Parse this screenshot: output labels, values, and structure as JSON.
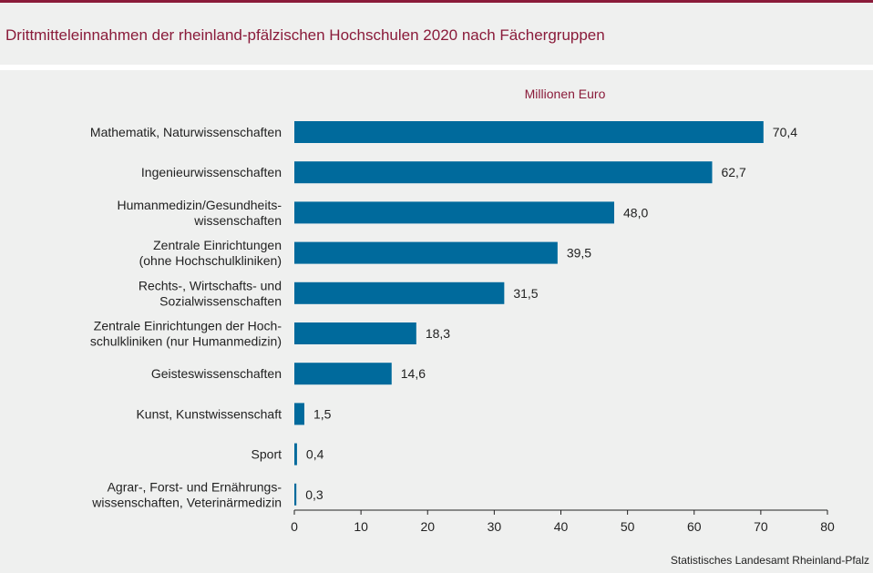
{
  "chart_data": {
    "type": "bar",
    "orientation": "horizontal",
    "title": "Drittmitteleinnahmen der rheinland-pfälzischen Hochschulen 2020 nach Fächergruppen",
    "unit": "Millionen  Euro",
    "categories": [
      [
        "Mathematik, Naturwissenschaften"
      ],
      [
        "Ingenieurwissenschaften"
      ],
      [
        "Humanmedizin/Gesundheits-",
        "wissenschaften"
      ],
      [
        "Zentrale Einrichtungen",
        "(ohne Hochschulkliniken)"
      ],
      [
        "Rechts-,  Wirtschafts- und",
        "Sozialwissenschaften"
      ],
      [
        "Zentrale Einrichtungen der Hoch-",
        "schulkliniken  (nur Humanmedizin)"
      ],
      [
        "Geisteswissenschaften"
      ],
      [
        "Kunst, Kunstwissenschaft"
      ],
      [
        "Sport"
      ],
      [
        "Agrar-, Forst- und Ernährungs-",
        "wissenschaften, Veterinärmedizin"
      ]
    ],
    "values": [
      70.4,
      62.7,
      48.0,
      39.5,
      31.5,
      18.3,
      14.6,
      1.5,
      0.4,
      0.3
    ],
    "value_labels": [
      "70,4",
      "62,7",
      "48,0",
      "39,5",
      "31,5",
      "18,3",
      "14,6",
      "1,5",
      "0,4",
      "0,3"
    ],
    "xlim": [
      0,
      80
    ],
    "xticks": [
      0,
      10,
      20,
      30,
      40,
      50,
      60,
      70,
      80
    ],
    "bar_color": "#006a9c",
    "grid": false,
    "legend": "none"
  },
  "source": "Statistisches Landesamt  Rheinland-Pfalz"
}
